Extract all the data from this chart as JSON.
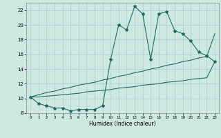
{
  "xlabel": "Humidex (Indice chaleur)",
  "bg_color": "#cce8e0",
  "line_color": "#1e6b5e",
  "grid_color": "#aacccc",
  "x_values": [
    0,
    1,
    2,
    3,
    4,
    5,
    6,
    7,
    8,
    9,
    10,
    11,
    12,
    13,
    14,
    15,
    16,
    17,
    18,
    19,
    20,
    21,
    22,
    23
  ],
  "main_y": [
    10.2,
    9.3,
    9.0,
    8.7,
    8.7,
    8.3,
    8.5,
    8.5,
    8.5,
    9.0,
    15.3,
    20.0,
    19.3,
    22.5,
    21.5,
    15.3,
    21.5,
    21.8,
    19.2,
    18.8,
    17.8,
    16.3,
    15.8,
    15.0
  ],
  "line2_y": [
    10.2,
    10.5,
    10.8,
    11.0,
    11.3,
    11.5,
    11.8,
    12.0,
    12.2,
    12.5,
    12.7,
    13.0,
    13.2,
    13.5,
    13.7,
    14.0,
    14.2,
    14.5,
    14.7,
    15.0,
    15.2,
    15.5,
    15.7,
    18.8
  ],
  "line3_y": [
    10.2,
    10.2,
    10.3,
    10.4,
    10.5,
    10.6,
    10.7,
    10.9,
    11.0,
    11.1,
    11.2,
    11.4,
    11.5,
    11.6,
    11.8,
    11.9,
    12.0,
    12.2,
    12.3,
    12.4,
    12.6,
    12.7,
    12.8,
    15.0
  ],
  "ylim": [
    8,
    23
  ],
  "xlim": [
    -0.5,
    23.5
  ],
  "yticks": [
    8,
    10,
    12,
    14,
    16,
    18,
    20,
    22
  ],
  "xticks": [
    0,
    1,
    2,
    3,
    4,
    5,
    6,
    7,
    8,
    9,
    10,
    11,
    12,
    13,
    14,
    15,
    16,
    17,
    18,
    19,
    20,
    21,
    22,
    23
  ]
}
